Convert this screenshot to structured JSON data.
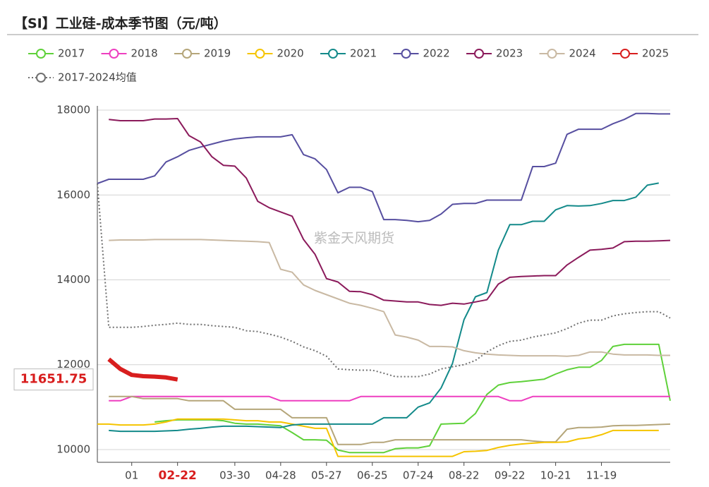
{
  "chart_data": {
    "type": "line",
    "title": "【SI】工业硅-成本季节图（元/吨）",
    "watermark": "紫金天风期货",
    "categories": [
      null,
      null,
      null,
      "01",
      null,
      null,
      null,
      "02-22",
      null,
      null,
      null,
      null,
      "03-30",
      null,
      null,
      null,
      "04-28",
      null,
      null,
      null,
      "05-27",
      null,
      null,
      null,
      "06-25",
      null,
      null,
      null,
      "07-24",
      null,
      null,
      null,
      "08-22",
      null,
      null,
      null,
      "09-22",
      null,
      null,
      null,
      "10-21",
      null,
      null,
      null,
      "11-19",
      null,
      null,
      null,
      null,
      null,
      null
    ],
    "ylim": [
      9700,
      18100
    ],
    "yticks": [
      10000,
      12000,
      14000,
      16000,
      18000
    ],
    "grid": true,
    "series": [
      {
        "name": "2017",
        "color": "#5fd13a",
        "values": [
          null,
          null,
          null,
          null,
          null,
          10650,
          10680,
          10700,
          10700,
          10700,
          10700,
          10680,
          10620,
          10600,
          10600,
          10580,
          10560,
          10400,
          10230,
          10230,
          10220,
          9990,
          9930,
          9930,
          9930,
          9930,
          10020,
          10040,
          10040,
          10090,
          10600,
          10610,
          10620,
          10850,
          11300,
          11520,
          11580,
          11600,
          11630,
          11660,
          11780,
          11880,
          11940,
          11940,
          12100,
          12430,
          12480,
          12480,
          12480,
          12480,
          11150
        ]
      },
      {
        "name": "2018",
        "color": "#ee3fc0",
        "values": [
          null,
          11150,
          11150,
          11250,
          11250,
          11250,
          11250,
          11250,
          11250,
          11250,
          11250,
          11250,
          11250,
          11250,
          11250,
          11250,
          11150,
          11150,
          11150,
          11150,
          11150,
          11150,
          11150,
          11250,
          11250,
          11250,
          11250,
          11250,
          11250,
          11250,
          11250,
          11250,
          11250,
          11250,
          11250,
          11250,
          11150,
          11150,
          11250,
          11250,
          11250,
          11250,
          11250,
          11250,
          11250,
          11250,
          11250,
          11250,
          11250,
          11250,
          11250
        ]
      },
      {
        "name": "2019",
        "color": "#b5a67a",
        "values": [
          null,
          11250,
          11250,
          11250,
          11200,
          11200,
          11200,
          11200,
          11150,
          11150,
          11150,
          11150,
          10950,
          10950,
          10950,
          10950,
          10950,
          10750,
          10750,
          10750,
          10750,
          10120,
          10120,
          10120,
          10170,
          10170,
          10230,
          10230,
          10230,
          10230,
          10230,
          10230,
          10230,
          10230,
          10230,
          10230,
          10230,
          10230,
          10200,
          10180,
          10180,
          10480,
          10520,
          10520,
          10530,
          10560,
          10570,
          10570,
          10580,
          10590,
          10600
        ]
      },
      {
        "name": "2020",
        "color": "#f5c400",
        "values": [
          10600,
          10600,
          10580,
          10580,
          10580,
          10600,
          10650,
          10720,
          10720,
          10720,
          10720,
          10720,
          10700,
          10680,
          10680,
          10650,
          10650,
          10600,
          10550,
          10500,
          10500,
          9840,
          9840,
          9840,
          9840,
          9840,
          9840,
          9840,
          9840,
          9840,
          9840,
          9840,
          9950,
          9960,
          9980,
          10050,
          10100,
          10130,
          10150,
          10170,
          10170,
          10180,
          10250,
          10280,
          10350,
          10450,
          10450,
          10450,
          10450,
          10450,
          null
        ]
      },
      {
        "name": "2021",
        "color": "#138a8a",
        "values": [
          null,
          10450,
          10430,
          10430,
          10430,
          10430,
          10440,
          10450,
          10480,
          10500,
          10530,
          10550,
          10550,
          10550,
          10540,
          10530,
          10520,
          10580,
          10600,
          10600,
          10600,
          10600,
          10600,
          10600,
          10600,
          10750,
          10750,
          10750,
          11000,
          11100,
          11450,
          12030,
          13060,
          13600,
          13700,
          14700,
          15300,
          15300,
          15380,
          15380,
          15650,
          15750,
          15740,
          15750,
          15800,
          15870,
          15870,
          15950,
          16230,
          16280,
          null
        ]
      },
      {
        "name": "2022",
        "color": "#574fa0",
        "values": [
          16270,
          16370,
          16370,
          16370,
          16370,
          16450,
          16780,
          16900,
          17050,
          17130,
          17200,
          17270,
          17320,
          17350,
          17370,
          17370,
          17370,
          17420,
          16950,
          16850,
          16600,
          16050,
          16180,
          16180,
          16080,
          15420,
          15420,
          15400,
          15370,
          15400,
          15550,
          15780,
          15800,
          15800,
          15880,
          15880,
          15880,
          15880,
          16670,
          16670,
          16750,
          17430,
          17550,
          17550,
          17550,
          17680,
          17780,
          17920,
          17920,
          17910,
          17910
        ]
      },
      {
        "name": "2023",
        "color": "#8b1a5b",
        "values": [
          null,
          17780,
          17750,
          17750,
          17750,
          17790,
          17790,
          17800,
          17400,
          17250,
          16900,
          16700,
          16680,
          16400,
          15850,
          15700,
          15600,
          15500,
          14950,
          14600,
          14030,
          13950,
          13730,
          13720,
          13650,
          13520,
          13500,
          13480,
          13480,
          13420,
          13400,
          13450,
          13430,
          13480,
          13530,
          13900,
          14060,
          14080,
          14090,
          14100,
          14100,
          14350,
          14530,
          14700,
          14720,
          14750,
          14900,
          14910,
          14910,
          14920,
          14930
        ]
      },
      {
        "name": "2024",
        "color": "#c9b9a3",
        "values": [
          null,
          14930,
          14940,
          14940,
          14940,
          14950,
          14950,
          14950,
          14950,
          14950,
          14940,
          14930,
          14920,
          14910,
          14900,
          14880,
          14250,
          14180,
          13880,
          13750,
          13650,
          13550,
          13450,
          13400,
          13330,
          13250,
          12700,
          12650,
          12580,
          12430,
          12430,
          12420,
          12330,
          12280,
          12250,
          12230,
          12220,
          12210,
          12210,
          12210,
          12210,
          12200,
          12220,
          12300,
          12300,
          12250,
          12230,
          12230,
          12230,
          12220,
          12220
        ]
      },
      {
        "name": "2025",
        "color": "#d81e1e",
        "line_width": 6,
        "values": [
          null,
          12130,
          11900,
          11760,
          11730,
          11720,
          11700,
          11651.75,
          null,
          null,
          null,
          null,
          null,
          null,
          null,
          null,
          null,
          null,
          null,
          null,
          null,
          null,
          null,
          null,
          null,
          null,
          null,
          null,
          null,
          null,
          null,
          null,
          null,
          null,
          null,
          null,
          null,
          null,
          null,
          null,
          null,
          null,
          null,
          null,
          null,
          null,
          null,
          null,
          null,
          null,
          null
        ]
      },
      {
        "name": "2017-2024均值",
        "color": "#707070",
        "line_style": "dotted",
        "values": [
          16270,
          12880,
          12880,
          12880,
          12900,
          12930,
          12950,
          12980,
          12950,
          12950,
          12920,
          12900,
          12880,
          12800,
          12780,
          12720,
          12650,
          12550,
          12420,
          12330,
          12200,
          11900,
          11880,
          11870,
          11870,
          11800,
          11720,
          11720,
          11720,
          11780,
          11900,
          11950,
          12000,
          12100,
          12300,
          12450,
          12550,
          12580,
          12650,
          12700,
          12750,
          12850,
          12980,
          13050,
          13050,
          13150,
          13200,
          13230,
          13250,
          13250,
          13100
        ]
      }
    ]
  }
}
